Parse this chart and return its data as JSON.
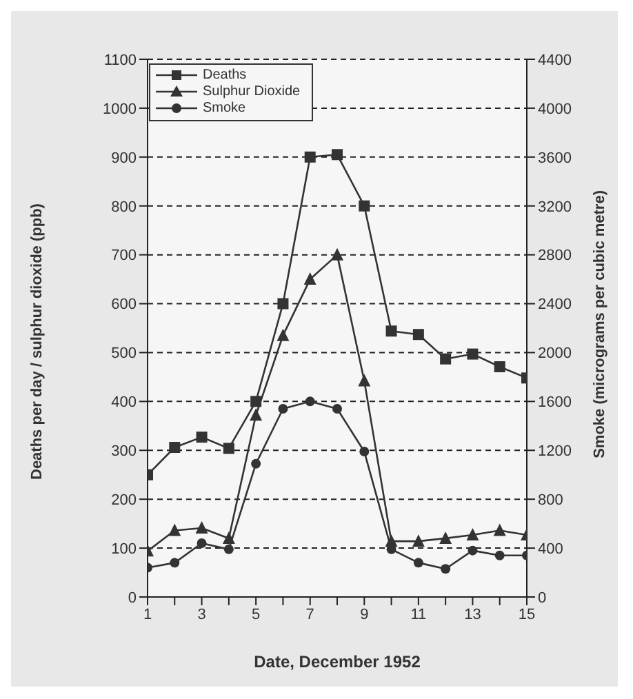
{
  "chart_data": {
    "type": "line",
    "xlabel": "Date, December 1952",
    "ylabel": "Deaths per day / sulphur dioxide (ppb)",
    "y2label": "Smoke (micrograms per cubic metre)",
    "x": [
      1,
      2,
      3,
      4,
      5,
      6,
      7,
      8,
      9,
      10,
      11,
      12,
      13,
      14,
      15
    ],
    "xlim": [
      1,
      15
    ],
    "xticks": [
      1,
      {
        "value": 2,
        "label": null
      },
      3,
      {
        "value": 4,
        "label": null
      },
      5,
      {
        "value": 6,
        "label": null
      },
      7,
      {
        "value": 8,
        "label": null
      },
      9,
      {
        "value": 10,
        "label": null
      },
      11,
      {
        "value": 12,
        "label": null
      },
      13,
      {
        "value": 14,
        "label": null
      },
      15
    ],
    "ylim": [
      0,
      1100
    ],
    "yticks": [
      0,
      100,
      200,
      300,
      400,
      500,
      600,
      700,
      800,
      900,
      1000,
      1100
    ],
    "y2lim": [
      0,
      4400
    ],
    "y2ticks": [
      0,
      400,
      800,
      1200,
      1600,
      2000,
      2400,
      2800,
      3200,
      3600,
      4000,
      4400
    ],
    "grid": "y",
    "legend": "top left",
    "line_style": "solid",
    "series": [
      {
        "name": "Deaths",
        "color": "#333333",
        "marker": "square",
        "values": [
          250,
          306,
          327,
          304,
          400,
          600,
          900,
          905,
          800,
          544,
          537,
          487,
          497,
          471,
          448
        ]
      },
      {
        "name": "Sulphur Dioxide",
        "color": "#333333",
        "marker": "triangle",
        "values": [
          94,
          136,
          141,
          120,
          372,
          535,
          650,
          700,
          442,
          114,
          114,
          120,
          127,
          136,
          127
        ]
      },
      {
        "name": "Smoke",
        "color": "#333333",
        "marker": "circle",
        "axis": "y2",
        "values": [
          240,
          280,
          440,
          390,
          1090,
          1540,
          1600,
          1540,
          1190,
          390,
          280,
          230,
          380,
          340,
          340
        ]
      }
    ]
  }
}
